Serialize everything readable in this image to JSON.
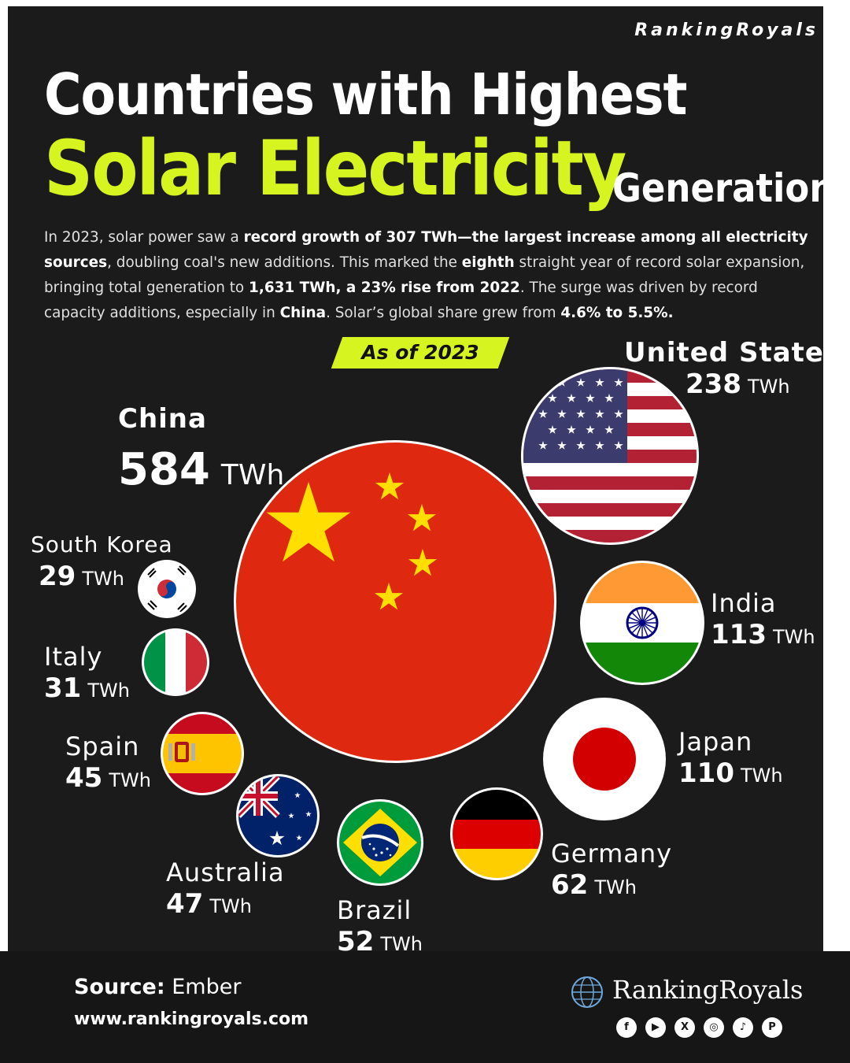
{
  "brand_top": "RankingRoyals",
  "title": {
    "line1": "Countries with Highest",
    "line2": "Solar Electricity",
    "line3": "Generation"
  },
  "intro": [
    {
      "t": "In 2023, solar power saw a ",
      "b": false
    },
    {
      "t": "record growth of 307 TWh—the largest increase among all electricity sources",
      "b": true
    },
    {
      "t": ", doubling coal's new additions. This marked the ",
      "b": false
    },
    {
      "t": "eighth",
      "b": true
    },
    {
      "t": " straight year of record solar expansion, bringing total generation to ",
      "b": false
    },
    {
      "t": "1,631 TWh, a 23% rise from 2022",
      "b": true
    },
    {
      "t": ". The surge was driven by record capacity additions, especially in ",
      "b": false
    },
    {
      "t": "China",
      "b": true
    },
    {
      "t": ". Solar’s global share grew from ",
      "b": false
    },
    {
      "t": "4.6% to 5.5%.",
      "b": true
    }
  ],
  "badge": "As of 2023",
  "chart_data": {
    "type": "bubble",
    "unit": "TWh",
    "points": [
      {
        "name": "China",
        "value": 584,
        "flag": "china-flag"
      },
      {
        "name": "United States",
        "value": 238,
        "flag": "us-flag"
      },
      {
        "name": "India",
        "value": 113,
        "flag": "india-flag"
      },
      {
        "name": "Japan",
        "value": 110,
        "flag": "japan-flag"
      },
      {
        "name": "Germany",
        "value": 62,
        "flag": "germany-flag"
      },
      {
        "name": "Brazil",
        "value": 52,
        "flag": "brazil-flag"
      },
      {
        "name": "Australia",
        "value": 47,
        "flag": "australia-flag"
      },
      {
        "name": "Spain",
        "value": 45,
        "flag": "spain-flag"
      },
      {
        "name": "Italy",
        "value": 31,
        "flag": "italy-flag"
      },
      {
        "name": "South Korea",
        "value": 29,
        "flag": "south-korea-flag"
      }
    ]
  },
  "footer": {
    "source_label": "Source:",
    "source_value": "Ember",
    "website": "www.rankingroyals.com",
    "logo_text": "RankingRoyals",
    "socials": [
      "facebook-icon",
      "youtube-icon",
      "x-icon",
      "instagram-icon",
      "tiktok-icon",
      "pinterest-icon"
    ]
  },
  "colors": {
    "accent": "#d6f520",
    "background": "#1b1b1b",
    "text": "#ffffff"
  }
}
